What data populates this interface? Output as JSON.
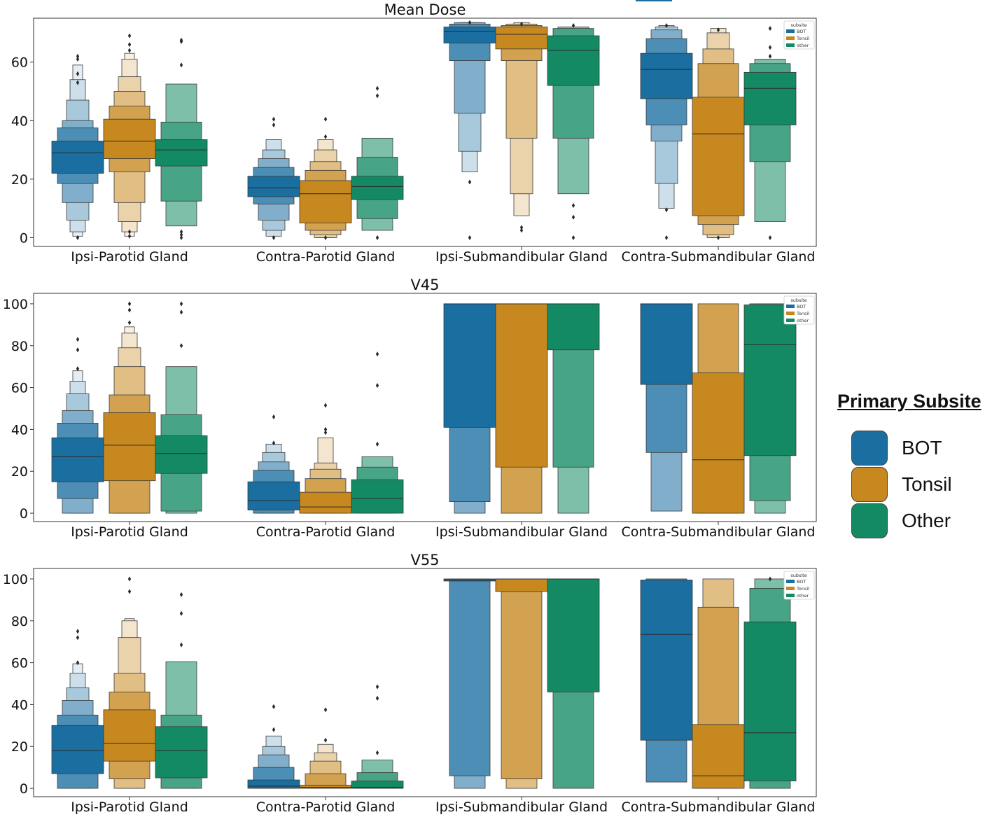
{
  "legend": {
    "title": "Primary Subsite",
    "items": [
      {
        "label": "BOT",
        "color": "#1a6ea0"
      },
      {
        "label": "Tonsil",
        "color": "#c7881f"
      },
      {
        "label": "Other",
        "color": "#148a64"
      }
    ]
  },
  "mini_legend": {
    "title": "subsite",
    "items": [
      "BOT",
      "Tonsil",
      "other"
    ]
  },
  "chart_data": [
    {
      "type": "boxen",
      "title": "Mean Dose",
      "categories": [
        "Ipsi-Parotid Gland",
        "Contra-Parotid Gland",
        "Ipsi-Submandibular Gland",
        "Contra-Submandibular Gland"
      ],
      "hue": [
        "BOT",
        "Tonsil",
        "other"
      ],
      "ylim": [
        -3,
        75
      ],
      "yticks": [
        0,
        20,
        40,
        60
      ],
      "boxes": [
        [
          {
            "median": 29,
            "levels": [
              [
                22,
                33
              ],
              [
                18.5,
                37.5
              ],
              [
                12,
                40
              ],
              [
                6,
                47
              ],
              [
                2,
                54
              ],
              [
                0.5,
                59
              ]
            ],
            "outliers": [
              0,
              53,
              56,
              61,
              62
            ]
          },
          {
            "median": 33,
            "levels": [
              [
                27,
                40.5
              ],
              [
                22.5,
                45
              ],
              [
                12,
                50
              ],
              [
                5.5,
                55
              ],
              [
                2,
                61
              ],
              [
                0.5,
                63
              ]
            ],
            "outliers": [
              0.5,
              2,
              64,
              66,
              69
            ]
          },
          {
            "median": 30,
            "levels": [
              [
                24.5,
                33.5
              ],
              [
                12.5,
                39.5
              ],
              [
                4,
                52.5
              ]
            ],
            "outliers": [
              0,
              1,
              2,
              59,
              67,
              67.5
            ]
          }
        ],
        [
          {
            "median": 17,
            "levels": [
              [
                14,
                21
              ],
              [
                11.5,
                24
              ],
              [
                6,
                27
              ],
              [
                2.5,
                30
              ],
              [
                0.5,
                33.5
              ]
            ],
            "outliers": [
              0,
              38.5,
              40.5
            ]
          },
          {
            "median": 15,
            "levels": [
              [
                5,
                19.5
              ],
              [
                2.5,
                23
              ],
              [
                1,
                26
              ],
              [
                0,
                30
              ],
              [
                0,
                33.5
              ]
            ],
            "outliers": [
              0,
              34.5,
              40.5
            ]
          },
          {
            "median": 17.5,
            "levels": [
              [
                13,
                21
              ],
              [
                6.5,
                27.5
              ],
              [
                2.5,
                34
              ]
            ],
            "outliers": [
              0,
              48.5,
              51
            ]
          }
        ],
        [
          {
            "median": 70.5,
            "levels": [
              [
                66.5,
                72
              ],
              [
                60.5,
                73
              ],
              [
                42.5,
                73.5
              ],
              [
                29.5,
                73.5
              ],
              [
                22.5,
                73.5
              ]
            ],
            "outliers": [
              0,
              19,
              73.5
            ]
          },
          {
            "median": 69.5,
            "levels": [
              [
                64.5,
                72
              ],
              [
                60.5,
                72.5
              ],
              [
                34,
                73
              ],
              [
                15,
                73
              ],
              [
                7.5,
                73.5
              ]
            ],
            "outliers": [
              2.5,
              3.5,
              73
            ]
          },
          {
            "median": 64,
            "levels": [
              [
                52,
                69
              ],
              [
                34,
                71.5
              ],
              [
                15,
                72
              ]
            ],
            "outliers": [
              0,
              7,
              11,
              72.5
            ]
          }
        ],
        [
          {
            "median": 57.5,
            "levels": [
              [
                47.5,
                63
              ],
              [
                38.5,
                68
              ],
              [
                33,
                71
              ],
              [
                18.5,
                72
              ],
              [
                10,
                72.5
              ]
            ],
            "outliers": [
              0,
              9.5,
              72.5
            ]
          },
          {
            "median": 35.5,
            "levels": [
              [
                7.5,
                48
              ],
              [
                4.5,
                59.5
              ],
              [
                1,
                64.5
              ],
              [
                0,
                70
              ],
              [
                0,
                71.5
              ]
            ],
            "outliers": [
              0,
              71
            ]
          },
          {
            "median": 51,
            "levels": [
              [
                38.5,
                56.5
              ],
              [
                26,
                59.5
              ],
              [
                5.5,
                61
              ]
            ],
            "outliers": [
              0,
              62,
              65,
              71.5
            ]
          }
        ]
      ]
    },
    {
      "type": "boxen",
      "title": "V45",
      "categories": [
        "Ipsi-Parotid Gland",
        "Contra-Parotid Gland",
        "Ipsi-Submandibular Gland",
        "Contra-Submandibular Gland"
      ],
      "hue": [
        "BOT",
        "Tonsil",
        "other"
      ],
      "ylim": [
        -4,
        105
      ],
      "yticks": [
        0,
        20,
        40,
        60,
        80,
        100
      ],
      "boxes": [
        [
          {
            "median": 27,
            "levels": [
              [
                15,
                36
              ],
              [
                7,
                43
              ],
              [
                0,
                49
              ],
              [
                0,
                57
              ],
              [
                0,
                63
              ],
              [
                0,
                68
              ]
            ],
            "outliers": [
              69,
              78,
              83
            ]
          },
          {
            "median": 32.5,
            "levels": [
              [
                15.5,
                48
              ],
              [
                0,
                56.5
              ],
              [
                0,
                70
              ],
              [
                0,
                79
              ],
              [
                0,
                86
              ],
              [
                0,
                89
              ]
            ],
            "outliers": [
              91,
              97,
              100
            ]
          },
          {
            "median": 28.5,
            "levels": [
              [
                19,
                37
              ],
              [
                1,
                47
              ],
              [
                0,
                70
              ]
            ],
            "outliers": [
              80,
              96,
              100
            ]
          }
        ],
        [
          {
            "median": 6,
            "levels": [
              [
                1.5,
                15
              ],
              [
                0,
                20.5
              ],
              [
                0,
                24.5
              ],
              [
                0,
                29
              ],
              [
                0,
                33
              ]
            ],
            "outliers": [
              33.5,
              46
            ]
          },
          {
            "median": 3,
            "levels": [
              [
                0,
                10
              ],
              [
                0,
                16.5
              ],
              [
                0,
                21
              ],
              [
                0,
                24
              ],
              [
                0,
                36
              ]
            ],
            "outliers": [
              38.5,
              40,
              51.5
            ]
          },
          {
            "median": 7,
            "levels": [
              [
                0,
                16
              ],
              [
                0,
                22
              ],
              [
                0,
                27
              ]
            ],
            "outliers": [
              33,
              61,
              76
            ]
          }
        ],
        [
          {
            "median": 100,
            "levels": [
              [
                41,
                100
              ],
              [
                5.5,
                100
              ],
              [
                0,
                100
              ]
            ],
            "outliers": []
          },
          {
            "median": 100,
            "levels": [
              [
                22,
                100
              ],
              [
                0,
                100
              ]
            ],
            "outliers": []
          },
          {
            "median": 100,
            "levels": [
              [
                78,
                100
              ],
              [
                22,
                100
              ],
              [
                0,
                100
              ]
            ],
            "outliers": []
          }
        ],
        [
          {
            "median": 100,
            "levels": [
              [
                61.5,
                100
              ],
              [
                29,
                100
              ],
              [
                1,
                100
              ]
            ],
            "outliers": []
          },
          {
            "median": 25.5,
            "levels": [
              [
                0,
                67
              ],
              [
                0,
                100
              ]
            ],
            "outliers": []
          },
          {
            "median": 80.5,
            "levels": [
              [
                27.5,
                99.5
              ],
              [
                6,
                100
              ],
              [
                0,
                100
              ]
            ],
            "outliers": []
          }
        ]
      ]
    },
    {
      "type": "boxen",
      "title": "V55",
      "categories": [
        "Ipsi-Parotid Gland",
        "Contra-Parotid Gland",
        "Ipsi-Submandibular Gland",
        "Contra-Submandibular Gland"
      ],
      "hue": [
        "BOT",
        "Tonsil",
        "other"
      ],
      "ylim": [
        -4,
        105
      ],
      "yticks": [
        0,
        20,
        40,
        60,
        80,
        100
      ],
      "boxes": [
        [
          {
            "median": 18,
            "levels": [
              [
                7,
                30
              ],
              [
                0,
                35
              ],
              [
                0,
                42
              ],
              [
                0,
                48
              ],
              [
                0,
                55
              ],
              [
                0,
                59.5
              ]
            ],
            "outliers": [
              60,
              72,
              75
            ]
          },
          {
            "median": 21.5,
            "levels": [
              [
                13,
                37.5
              ],
              [
                4.5,
                46
              ],
              [
                0,
                55
              ],
              [
                0,
                72
              ],
              [
                0,
                80
              ],
              [
                0,
                81
              ]
            ],
            "outliers": [
              94,
              100
            ]
          },
          {
            "median": 18,
            "levels": [
              [
                5,
                29.5
              ],
              [
                0,
                35
              ],
              [
                0,
                60.5
              ]
            ],
            "outliers": [
              68.5,
              83.5,
              92.5
            ]
          }
        ],
        [
          {
            "median": 1,
            "levels": [
              [
                0,
                4
              ],
              [
                0,
                10
              ],
              [
                0,
                16
              ],
              [
                0,
                20
              ],
              [
                0,
                25
              ]
            ],
            "outliers": [
              28,
              39
            ]
          },
          {
            "median": 0.5,
            "levels": [
              [
                0,
                1.5
              ],
              [
                0,
                7
              ],
              [
                0,
                13
              ],
              [
                0,
                17
              ],
              [
                0,
                21
              ]
            ],
            "outliers": [
              23,
              37.5
            ]
          },
          {
            "median": 0.5,
            "levels": [
              [
                0,
                3.5
              ],
              [
                0,
                7.5
              ],
              [
                0,
                13.5
              ]
            ],
            "outliers": [
              17,
              43,
              48.5
            ]
          }
        ],
        [
          {
            "median": 99.5,
            "levels": [
              [
                99,
                100
              ],
              [
                6,
                100
              ],
              [
                0,
                100
              ]
            ],
            "outliers": []
          },
          {
            "median": 100,
            "levels": [
              [
                94,
                100
              ],
              [
                4.5,
                100
              ],
              [
                0,
                100
              ]
            ],
            "outliers": []
          },
          {
            "median": 100,
            "levels": [
              [
                46,
                100
              ],
              [
                0,
                100
              ]
            ],
            "outliers": []
          }
        ],
        [
          {
            "median": 73.5,
            "levels": [
              [
                23,
                99.5
              ],
              [
                3,
                100
              ]
            ],
            "outliers": []
          },
          {
            "median": 6,
            "levels": [
              [
                0,
                30.5
              ],
              [
                0,
                86.5
              ],
              [
                0,
                100
              ]
            ],
            "outliers": []
          },
          {
            "median": 26.5,
            "levels": [
              [
                3.5,
                79.5
              ],
              [
                0,
                95.5
              ],
              [
                0,
                100
              ]
            ],
            "outliers": [
              100
            ]
          }
        ]
      ]
    }
  ]
}
